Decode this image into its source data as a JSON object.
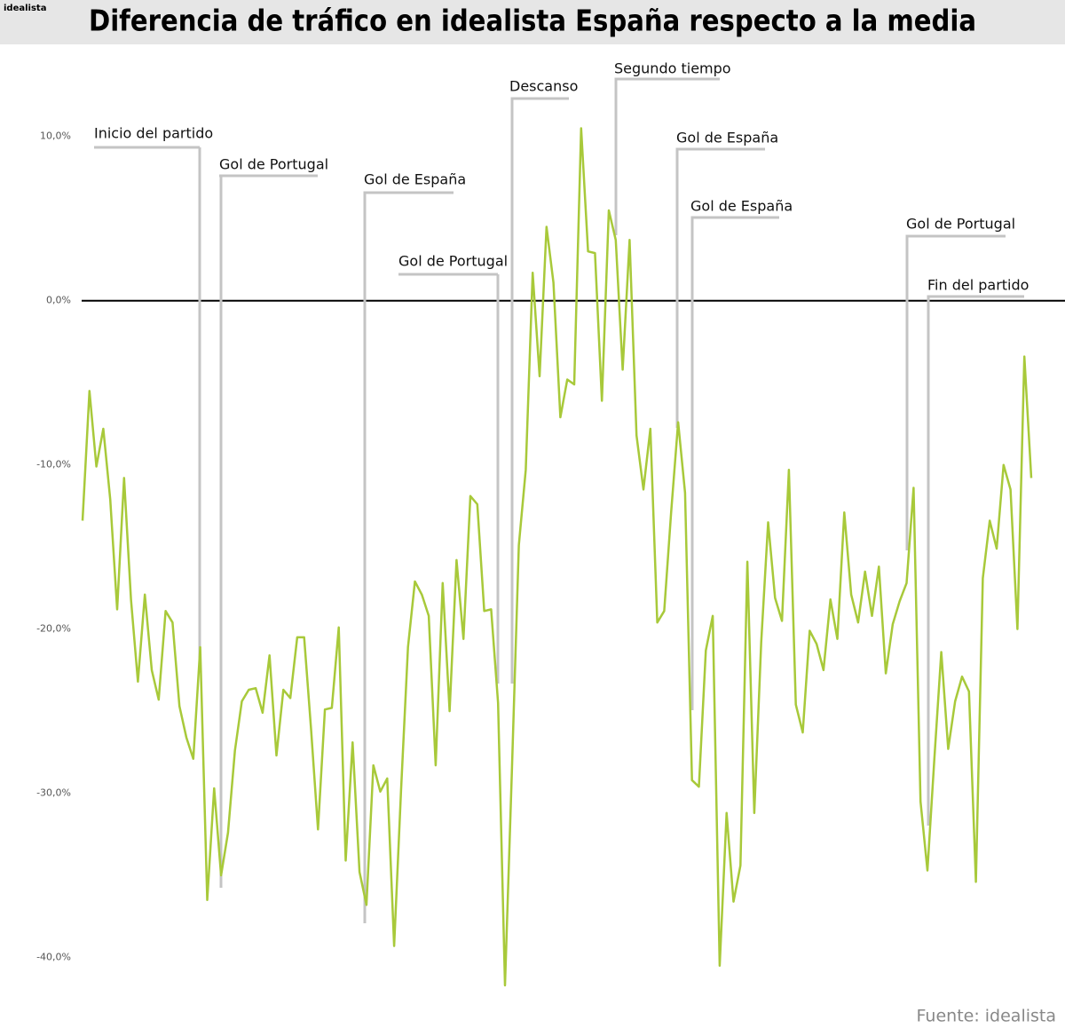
{
  "brand": "idealista",
  "chart_data": {
    "type": "line",
    "title": "Diferencia de tráfico en idealista España respecto a la media",
    "source": "Fuente: idealista",
    "series": [
      {
        "color": "#a8c93a",
        "values": [
          -13.4,
          -5.5,
          -10.1,
          -7.8,
          -12.1,
          -18.8,
          -10.8,
          -18.2,
          -23.2,
          -17.9,
          -22.5,
          -24.3,
          -18.9,
          -19.6,
          -24.7,
          -26.6,
          -27.9,
          -21.1,
          -36.5,
          -29.7,
          -35.0,
          -32.4,
          -27.4,
          -24.4,
          -23.7,
          -23.6,
          -25.1,
          -21.6,
          -27.7,
          -23.7,
          -24.2,
          -20.5,
          -20.5,
          -26.1,
          -32.2,
          -24.9,
          -24.8,
          -19.9,
          -34.1,
          -26.9,
          -34.8,
          -36.8,
          -28.3,
          -29.9,
          -29.1,
          -39.3,
          -29.8,
          -21.1,
          -17.1,
          -17.9,
          -19.2,
          -28.3,
          -17.2,
          -25.0,
          -15.8,
          -20.6,
          -11.9,
          -12.4,
          -18.9,
          -18.8,
          -24.5,
          -41.7,
          -28.6,
          -14.9,
          -10.3,
          1.7,
          -4.6,
          4.5,
          1.1,
          -7.1,
          -4.8,
          -5.1,
          10.5,
          3.0,
          2.9,
          -6.1,
          5.5,
          3.7,
          -4.2,
          3.7,
          -8.2,
          -11.5,
          -7.8,
          -19.6,
          -18.9,
          -12.9,
          -7.4,
          -11.7,
          -29.2,
          -29.6,
          -21.3,
          -19.2,
          -40.5,
          -31.2,
          -36.6,
          -34.4,
          -15.9,
          -31.2,
          -20.8,
          -13.5,
          -18.1,
          -19.5,
          -10.3,
          -24.6,
          -26.3,
          -20.1,
          -20.9,
          -22.5,
          -18.2,
          -20.6,
          -12.9,
          -17.9,
          -19.6,
          -16.5,
          -19.2,
          -16.2,
          -22.7,
          -19.7,
          -18.3,
          -17.2,
          -11.4,
          -30.5,
          -34.7,
          -27.9,
          -21.4,
          -27.3,
          -24.4,
          -22.9,
          -23.8,
          -35.4,
          -16.9,
          -13.4,
          -15.1,
          -10.0,
          -11.5,
          -20.0,
          -3.4,
          -10.8
        ]
      }
    ],
    "ylim": [
      12.5,
      -44
    ],
    "yticks": [
      {
        "value": 10,
        "label": "10,0%"
      },
      {
        "value": 0,
        "label": "0,0%"
      },
      {
        "value": -10,
        "label": "-10,0%"
      },
      {
        "value": -20,
        "label": "-20,0%"
      },
      {
        "value": -30,
        "label": "-30,0%"
      },
      {
        "value": -40,
        "label": "-40,0%"
      }
    ],
    "annotations": [
      "Inicio del partido",
      "Gol de Portugal",
      "Gol de España",
      "Gol de Portugal",
      "Descanso",
      "Segundo tiempo",
      "Gol de España",
      "Gol de España",
      "Gol de Portugal",
      "Fin del partido"
    ]
  }
}
